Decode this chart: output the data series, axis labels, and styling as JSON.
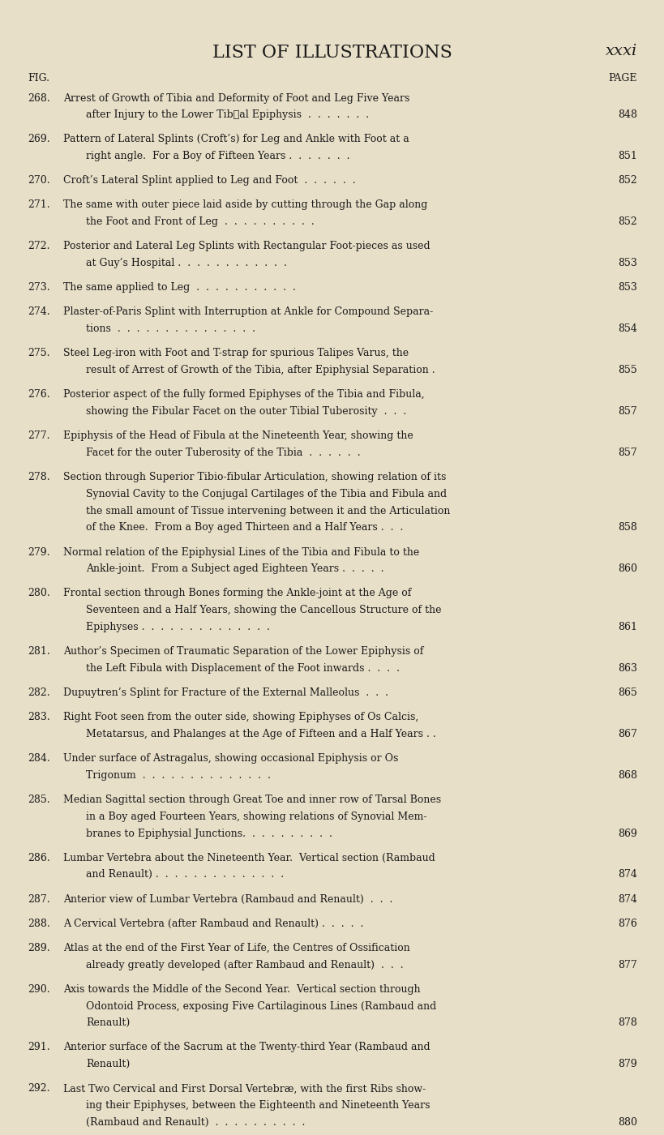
{
  "title": "LIST OF ILLUSTRATIONS",
  "page_label": "xxxi",
  "col_headers": [
    "FIG.",
    "PAGE"
  ],
  "bg_color": "#e8dfc8",
  "title_fontsize": 16,
  "header_fontsize": 9,
  "body_fontsize": 9,
  "entries": [
    {
      "num": "268.",
      "lines": [
        "Arrest of Growth of Tibia and Deformity of Foot and Leg Five Years",
        "after Injury to the Lower Tib\u0004al Epiphysis  .  .  .  .  .  .  . "
      ],
      "page": "848"
    },
    {
      "num": "269.",
      "lines": [
        "Pattern of Lateral Splints (Croft’s) for Leg and Ankle with Foot at a",
        "right angle.  For a Boy of Fifteen Years .  .  .  .  .  .  . "
      ],
      "page": "851"
    },
    {
      "num": "270.",
      "lines": [
        "Croft’s Lateral Splint applied to Leg and Foot  .  .  .  .  .  . "
      ],
      "page": "852"
    },
    {
      "num": "271.",
      "lines": [
        "The same with outer piece laid aside by cutting through the Gap along",
        "the Foot and Front of Leg  .  .  .  .  .  .  .  .  .  . "
      ],
      "page": "852"
    },
    {
      "num": "272.",
      "lines": [
        "Posterior and Lateral Leg Splints with Rectangular Foot-pieces as used",
        "at Guy’s Hospital .  .  .  .  .  .  .  .  .  .  .  . "
      ],
      "page": "853"
    },
    {
      "num": "273.",
      "lines": [
        "The same applied to Leg  .  .  .  .  .  .  .  .  .  .  . "
      ],
      "page": "853"
    },
    {
      "num": "274.",
      "lines": [
        "Plaster-of-Paris Splint with Interruption at Ankle for Compound Separa-",
        "tions  .  .  .  .  .  .  .  .  .  .  .  .  .  .  . "
      ],
      "page": "854"
    },
    {
      "num": "275.",
      "lines": [
        "Steel Leg-iron with Foot and T-strap for spurious Talipes Varus, the",
        "result of Arrest of Growth of the Tibia, after Epiphysial Separation . "
      ],
      "page": "855"
    },
    {
      "num": "276.",
      "lines": [
        "Posterior aspect of the fully formed Epiphyses of the Tibia and Fibula,",
        "showing the Fibular Facet on the outer Tibial Tuberosity  .  .  . "
      ],
      "page": "857"
    },
    {
      "num": "277.",
      "lines": [
        "Epiphysis of the Head of Fibula at the Nineteenth Year, showing the",
        "Facet for the outer Tuberosity of the Tibia  .  .  .  .  .  . "
      ],
      "page": "857"
    },
    {
      "num": "278.",
      "lines": [
        "Section through Superior Tibio-fibular Articulation, showing relation of its",
        "Synovial Cavity to the Conjugal Cartilages of the Tibia and Fibula and",
        "the small amount of Tissue intervening between it and the Articulation",
        "of the Knee.  From a Boy aged Thirteen and a Half Years .  .  . "
      ],
      "page": "858"
    },
    {
      "num": "279.",
      "lines": [
        "Normal relation of the Epiphysial Lines of the Tibia and Fibula to the",
        "Ankle-joint.  From a Subject aged Eighteen Years .  .  .  .  . "
      ],
      "page": "860"
    },
    {
      "num": "280.",
      "lines": [
        "Frontal section through Bones forming the Ankle-joint at the Age of",
        "Seventeen and a Half Years, showing the Cancellous Structure of the",
        "Epiphyses .  .  .  .  .  .  .  .  .  .  .  .  .  . "
      ],
      "page": "861"
    },
    {
      "num": "281.",
      "lines": [
        "Author’s Specimen of Traumatic Separation of the Lower Epiphysis of",
        "the Left Fibula with Displacement of the Foot inwards .  .  .  . "
      ],
      "page": "863"
    },
    {
      "num": "282.",
      "lines": [
        "Dupuytren’s Splint for Fracture of the External Malleolus  .  .  . "
      ],
      "page": "865"
    },
    {
      "num": "283.",
      "lines": [
        "Right Foot seen from the outer side, showing Epiphyses of Os Calcis,",
        "Metatarsus, and Phalanges at the Age of Fifteen and a Half Years . . "
      ],
      "page": "867"
    },
    {
      "num": "284.",
      "lines": [
        "Under surface of Astragalus, showing occasional Epiphysis or Os",
        "Trigonum  .  .  .  .  .  .  .  .  .  .  .  .  .  . "
      ],
      "page": "868"
    },
    {
      "num": "285.",
      "lines": [
        "Median Sagittal section through Great Toe and inner row of Tarsal Bones",
        "in a Boy aged Fourteen Years, showing relations of Synovial Mem-",
        "branes to Epiphysial Junctions.  .  .  .  .  .  .  .  .  . "
      ],
      "page": "869"
    },
    {
      "num": "286.",
      "lines": [
        "Lumbar Vertebra about the Nineteenth Year.  Vertical section (Rambaud",
        "and Renault) .  .  .  .  .  .  .  .  .  .  .  .  .  . "
      ],
      "page": "874",
      "italic_part": "Rambaud and Renault"
    },
    {
      "num": "287.",
      "lines": [
        "Anterior view of Lumbar Vertebra (Rambaud and Renault)  .  .  . "
      ],
      "page": "874",
      "italic_part": "Rambaud and Renault"
    },
    {
      "num": "288.",
      "lines": [
        "A Cervical Vertebra (after Rambaud and Renault) .  .  .  .  . "
      ],
      "page": "876",
      "italic_part": "after Rambaud and Renault"
    },
    {
      "num": "289.",
      "lines": [
        "Atlas at the end of the First Year of Life, the Centres of Ossification",
        "already greatly developed (after Rambaud and Renault)  .  .  . "
      ],
      "page": "877",
      "italic_part": "after Rambaud and Renault"
    },
    {
      "num": "290.",
      "lines": [
        "Axis towards the Middle of the Second Year.  Vertical section through",
        "Odontoid Process, exposing Five Cartilaginous Lines (Rambaud and",
        "Renault)"
      ],
      "page": "878",
      "italic_part": "Rambaud and Renault"
    },
    {
      "num": "291.",
      "lines": [
        "Anterior surface of the Sacrum at the Twenty-third Year (Rambaud and",
        "Renault)"
      ],
      "page": "879",
      "italic_part": "Rambaud and Renault"
    },
    {
      "num": "292.",
      "lines": [
        "Last Two Cervical and First Dorsal Vertebræ, with the first Ribs show-",
        "ing their Epiphyses, between the Eighteenth and Nineteenth Years",
        "(Rambaud and Renault)  .  .  .  .  .  .  .  .  .  . "
      ],
      "page": "880",
      "italic_part": "Rambaud and Renault"
    }
  ]
}
